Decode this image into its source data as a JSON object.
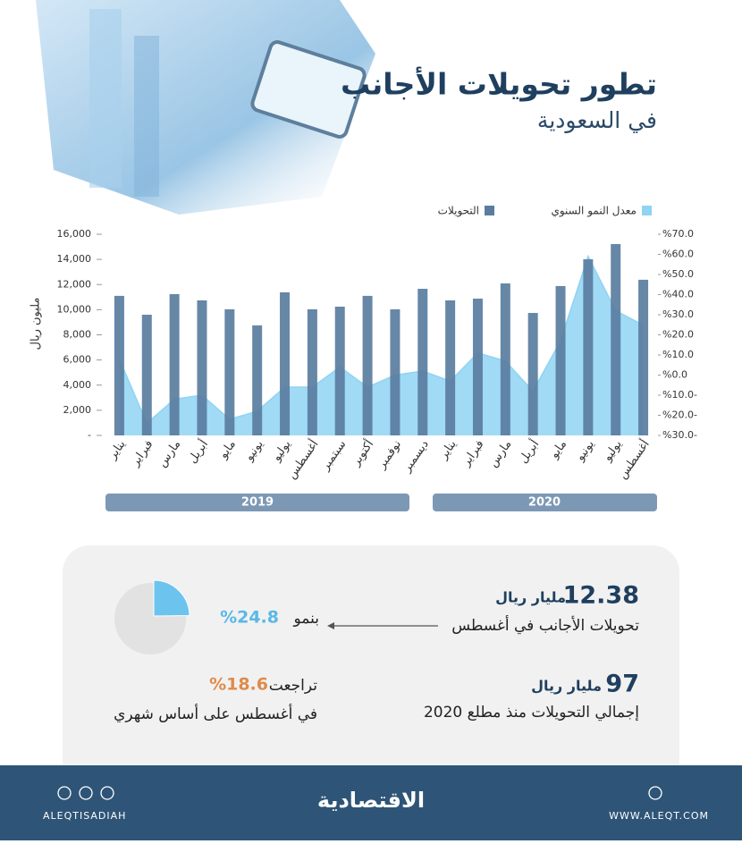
{
  "chart_data": {
    "type": "bar",
    "title": "تطور تحويلات الأجانب",
    "subtitle": "في السعودية",
    "y_label": "مليون ريال",
    "categories": [
      "يناير",
      "فبراير",
      "مارس",
      "أبريل",
      "مايو",
      "يونيو",
      "يوليو",
      "أغسطس",
      "سبتمبر",
      "أكتوبر",
      "نوفمبر",
      "ديسمبر",
      "يناير",
      "فبراير",
      "مارس",
      "أبريل",
      "مايو",
      "يونيو",
      "يوليو",
      "أغسطس"
    ],
    "year_labels": [
      "2019",
      "2020"
    ],
    "series": [
      {
        "name": "التحويلات",
        "type": "bar",
        "axis": "y",
        "color": "#5a7d9f",
        "values": [
          11100,
          9600,
          11240,
          10740,
          10030,
          8750,
          11380,
          10030,
          10240,
          11100,
          10030,
          11660,
          10740,
          10880,
          12090,
          9740,
          11880,
          14010,
          15220,
          12380
        ]
      },
      {
        "name": "معدل النمو السنوي",
        "type": "area",
        "axis": "y2",
        "color": "#8fd4f3",
        "values": [
          8,
          -24,
          -12,
          -10,
          -22,
          -18,
          -6,
          -6,
          4,
          -6,
          0,
          2,
          -3,
          11,
          7,
          -8,
          17,
          59,
          32,
          24.8
        ]
      }
    ],
    "ylim": [
      0,
      16000
    ],
    "yticks": [
      {
        "value": 0,
        "label": "-"
      },
      {
        "value": 2000,
        "label": "2,000"
      },
      {
        "value": 4000,
        "label": "4,000"
      },
      {
        "value": 6000,
        "label": "6,000"
      },
      {
        "value": 8000,
        "label": "8,000"
      },
      {
        "value": 10000,
        "label": "10,000"
      },
      {
        "value": 12000,
        "label": "12,000"
      },
      {
        "value": 14000,
        "label": "14,000"
      },
      {
        "value": 16000,
        "label": "16,000"
      }
    ],
    "y2lim": [
      -30,
      70
    ],
    "y2ticks": [
      {
        "value": -30,
        "label": "%30.0-"
      },
      {
        "value": -20,
        "label": "%20.0-"
      },
      {
        "value": -10,
        "label": "%10.0-"
      },
      {
        "value": 0,
        "label": "%0.0"
      },
      {
        "value": 10,
        "label": "%10.0"
      },
      {
        "value": 20,
        "label": "%20.0"
      },
      {
        "value": 30,
        "label": "%30.0"
      },
      {
        "value": 40,
        "label": "%40.0"
      },
      {
        "value": 50,
        "label": "%50.0"
      },
      {
        "value": 60,
        "label": "%60.0"
      },
      {
        "value": 70,
        "label": "%70.0"
      }
    ],
    "grid": false
  },
  "stats": {
    "august": {
      "value": "12.38",
      "unit": "مليار ريال",
      "label": "تحويلات الأجانب في أغسطس"
    },
    "growth": {
      "prefix": "بنمو",
      "value": 24.8,
      "label": "%24.8"
    },
    "total": {
      "value": "97",
      "unit": "مليار ريال",
      "label": "إجمالي التحويلات منذ مطلع 2020"
    },
    "decline": {
      "prefix": "تراجعت",
      "value": "%18.6",
      "label": "في أغسطس على أساس شهري"
    }
  },
  "footer": {
    "handle": "ALEQTISADIAH",
    "logo": "الاقتصادية",
    "website": "WWW.ALEQT.COM"
  }
}
